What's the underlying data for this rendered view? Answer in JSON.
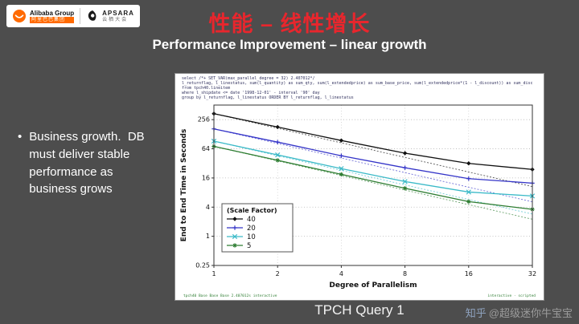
{
  "slide": {
    "title": "性能 – 线性增长",
    "subtitle": "Performance Improvement – linear growth",
    "bullet_glyph": "•",
    "bullet": "Business growth.  DB must deliver stable performance as business grows",
    "footer": "TPCH Query 1"
  },
  "logos": {
    "alibaba_en": "Alibaba Group",
    "alibaba_cn": "阿里巴巴集团",
    "apsara_en": "APSARA",
    "apsara_cn": "云栖大会"
  },
  "watermark": {
    "site": "知乎",
    "handle": "@超级迷你牛宝宝"
  },
  "sql_header": {
    "lines": [
      "select  /*+ SET_VAR(max_parallel_degree = 32)   2.407012*/",
      "  l_returnflag, l_linestatus, sum(l_quantity) as sum_qty, sum(l_extendedprice) as sum_base_price, sum(l_extendedprice*(1 - l_discount)) as sum_disc",
      "  from tpch40.lineitem",
      "  where l_shipdate <= date '1998-12-01' - interval '90' day",
      "  group by l_returnflag, l_linestatus ORDER BY l_returnflag, l_linestatus"
    ]
  },
  "fine_print": {
    "left": "tpch40  Base  Base  Base  2.407012s  interactive",
    "right": "interactive · scripted"
  },
  "chart_data": {
    "type": "line",
    "title": "",
    "xlabel": "Degree of Parallelism",
    "ylabel": "End to End Time in Seconds",
    "x": [
      1,
      2,
      4,
      8,
      16,
      32
    ],
    "x_ticks": [
      "1",
      "2",
      "4",
      "8",
      "16",
      "32"
    ],
    "y_ticks": [
      0.25,
      1,
      4,
      16,
      64,
      256
    ],
    "y_tick_labels": [
      "0.25",
      "1",
      "4",
      "16",
      "64",
      "256"
    ],
    "xlim": [
      1,
      32
    ],
    "ylim": [
      0.25,
      512
    ],
    "log_x": true,
    "log_y": true,
    "grid": true,
    "legend_title": "(Scale Factor)",
    "legend_position": "lower-left",
    "ideal_scaling_lines": true,
    "series": [
      {
        "name": "40",
        "color": "#111111",
        "marker": "diamond",
        "values": [
          340,
          180,
          95,
          52,
          32,
          24
        ]
      },
      {
        "name": "20",
        "color": "#3434c8",
        "marker": "plus",
        "values": [
          165,
          88,
          46,
          26,
          15.5,
          12.5
        ]
      },
      {
        "name": "10",
        "color": "#3bbac8",
        "marker": "x",
        "values": [
          92,
          48,
          25,
          13.5,
          8.2,
          6.8
        ]
      },
      {
        "name": "5",
        "color": "#2e7d32",
        "marker": "star",
        "values": [
          72,
          37,
          19,
          9.8,
          5.2,
          3.6
        ]
      }
    ]
  }
}
